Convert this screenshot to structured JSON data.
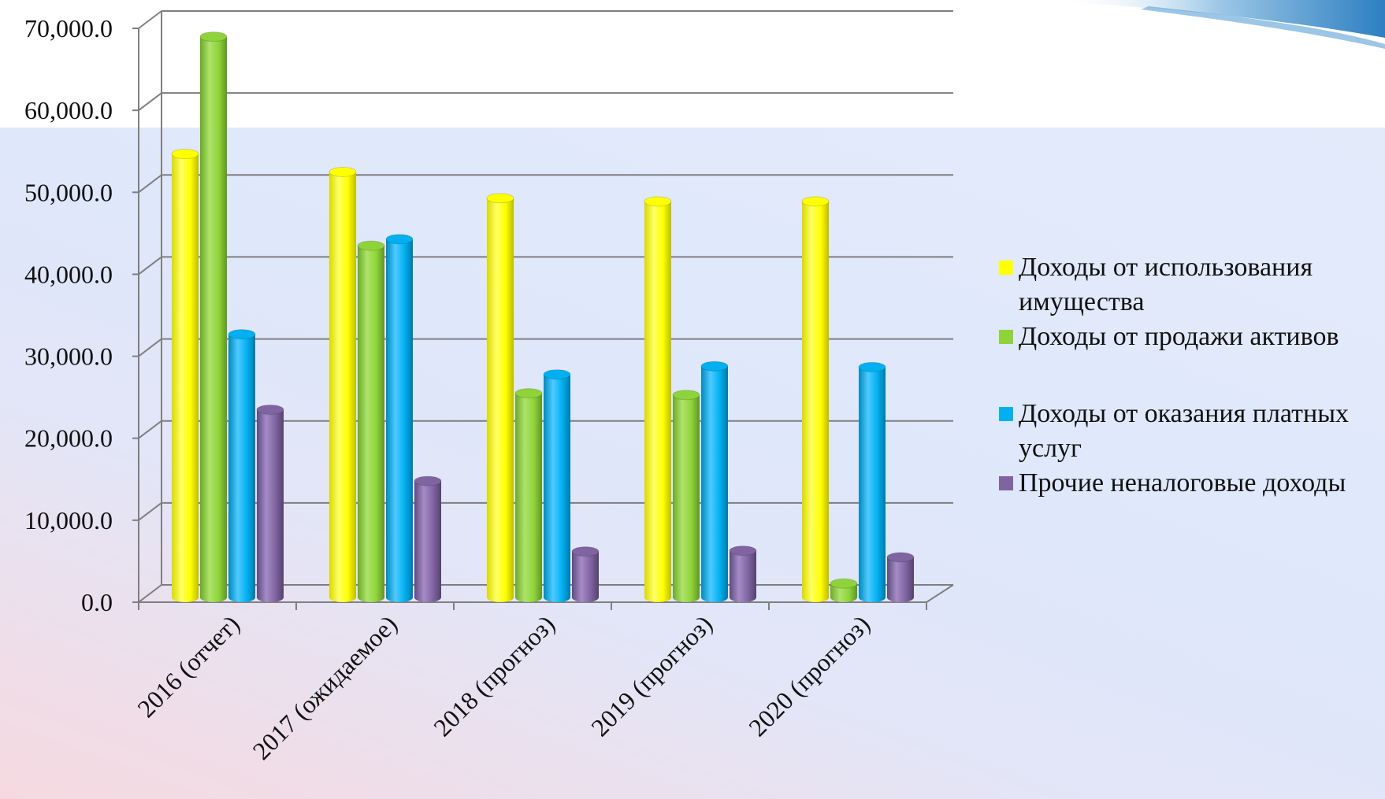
{
  "chart_data": {
    "type": "bar",
    "title": "",
    "xlabel": "",
    "ylabel": "",
    "ylim": [
      0,
      70000
    ],
    "yticks": [
      "0.0",
      "10,000.0",
      "20,000.0",
      "30,000.0",
      "40,000.0",
      "50,000.0",
      "60,000.0",
      "70,000.0"
    ],
    "categories": [
      "2016 (отчет)",
      "2017 (ожидаемое)",
      "2018 (прогноз)",
      "2019 (прогноз)",
      "2020 (прогноз)"
    ],
    "series": [
      {
        "name": "Доходы от использования имущества",
        "color": "#ffff00",
        "values": [
          54200,
          52000,
          48800,
          48400,
          48400
        ]
      },
      {
        "name": "Доходы от продажи активов",
        "color": "#8fd33a",
        "values": [
          68500,
          43000,
          25000,
          24800,
          1800
        ]
      },
      {
        "name": "Доходы от оказания платных услуг",
        "color": "#00b0f0",
        "values": [
          32200,
          43800,
          27300,
          28300,
          28200
        ]
      },
      {
        "name": "Прочие неналоговые доходы",
        "color": "#8064a2",
        "values": [
          23000,
          14300,
          5700,
          5800,
          5000
        ]
      }
    ],
    "grid": true,
    "legend_position": "right",
    "three_d": true
  }
}
